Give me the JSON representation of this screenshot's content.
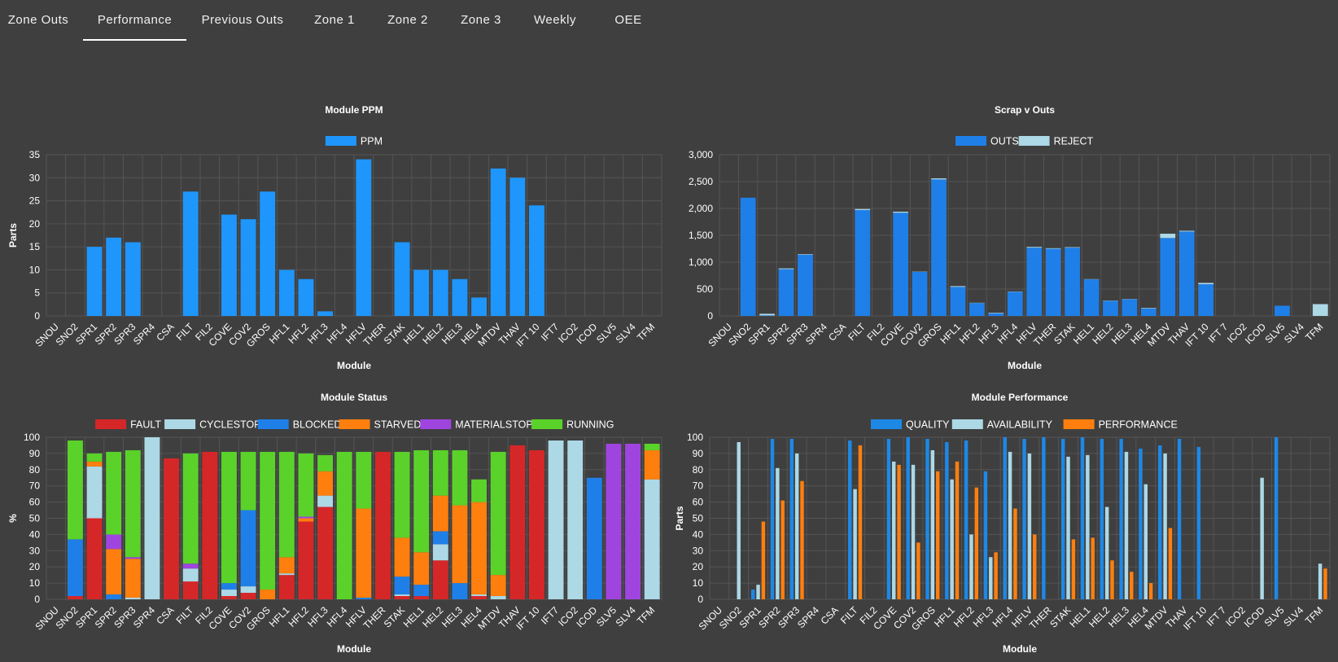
{
  "tabs": [
    {
      "label": "Zone Outs",
      "active": false
    },
    {
      "label": "Performance",
      "active": true
    },
    {
      "label": "Previous Outs",
      "active": false
    },
    {
      "label": "Zone 1",
      "active": false
    },
    {
      "label": "Zone 2",
      "active": false
    },
    {
      "label": "Zone 3",
      "active": false
    },
    {
      "label": "Weekly",
      "active": false
    },
    {
      "label": "OEE",
      "active": false
    }
  ],
  "colors": {
    "background": "#3f3f3f",
    "grid": "#555555",
    "axis_text": "#ffffff",
    "ppm": "#1e96fc",
    "outs": "#1f7fe8",
    "reject": "#add8e6",
    "fault": "#d62728",
    "cyclestop": "#add8e6",
    "blocked": "#1f7fe8",
    "starved": "#ff7f0e",
    "materialstop": "#a044e0",
    "running": "#5ad22a",
    "quality": "#1e88e5",
    "availability": "#add8e6",
    "performance": "#ff7f0e"
  },
  "chart_data": [
    {
      "id": "ppm",
      "type": "bar",
      "title": "Module PPM",
      "xlabel": "Module",
      "ylabel": "Parts",
      "ylim": [
        0,
        35
      ],
      "yticks": [
        0,
        5,
        10,
        15,
        20,
        25,
        30,
        35
      ],
      "categories": [
        "SNOU",
        "SNO2",
        "SPR1",
        "SPR2",
        "SPR3",
        "SPR4",
        "CSA",
        "FILT",
        "FIL2",
        "COVE",
        "COV2",
        "GROS",
        "HFL1",
        "HFL2",
        "HFL3",
        "HFL4",
        "HFLV",
        "THER",
        "STAK",
        "HEL1",
        "HEL2",
        "HEL3",
        "HEL4",
        "MTDV",
        "THAV",
        "IFT 10",
        "IFT7",
        "ICO2",
        "ICOD",
        "SLV5",
        "SLV4",
        "TFM"
      ],
      "stacked": false,
      "series": [
        {
          "name": "PPM",
          "color": "#1e96fc",
          "values": [
            0,
            0,
            15,
            17,
            16,
            0,
            0,
            27,
            0,
            22,
            21,
            27,
            10,
            8,
            1,
            0,
            34,
            0,
            16,
            10,
            10,
            8,
            4,
            32,
            30,
            24,
            0,
            0,
            0,
            0,
            0,
            0
          ]
        }
      ]
    },
    {
      "id": "scrap",
      "type": "bar",
      "title": "Scrap v Outs",
      "xlabel": "Module",
      "ylabel": "",
      "ylim": [
        0,
        3000
      ],
      "yticks": [
        0,
        500,
        1000,
        1500,
        2000,
        2500,
        3000
      ],
      "categories": [
        "SNOU",
        "SNO2",
        "SPR1",
        "SPR2",
        "SPR3",
        "SPR4",
        "CSA",
        "FILT",
        "FIL2",
        "COVE",
        "COV2",
        "GROS",
        "HFL1",
        "HFL2",
        "HFL3",
        "HFL4",
        "HFLV",
        "THER",
        "STAK",
        "HEL1",
        "HEL2",
        "HEL3",
        "HEL4",
        "MTDV",
        "THAV",
        "IFT 10",
        "IFT 7",
        "ICO2",
        "ICOD",
        "SLV5",
        "SLV4",
        "TFM"
      ],
      "stacked": true,
      "series": [
        {
          "name": "OUTS",
          "color": "#1f7fe8",
          "values": [
            0,
            2200,
            10,
            870,
            1140,
            0,
            0,
            1970,
            0,
            1920,
            820,
            2540,
            540,
            240,
            50,
            450,
            1270,
            1250,
            1270,
            680,
            280,
            310,
            140,
            1450,
            1570,
            590,
            0,
            0,
            0,
            190,
            0,
            0
          ]
        },
        {
          "name": "REJECT",
          "color": "#add8e6",
          "values": [
            0,
            0,
            30,
            15,
            10,
            0,
            0,
            20,
            0,
            20,
            5,
            20,
            15,
            5,
            10,
            5,
            15,
            10,
            10,
            5,
            5,
            5,
            10,
            80,
            15,
            25,
            0,
            0,
            0,
            0,
            0,
            220
          ]
        }
      ]
    },
    {
      "id": "status",
      "type": "bar",
      "title": "Module Status",
      "xlabel": "Module",
      "ylabel": "%",
      "ylim": [
        0,
        100
      ],
      "yticks": [
        0,
        10,
        20,
        30,
        40,
        50,
        60,
        70,
        80,
        90,
        100
      ],
      "categories": [
        "SNOU",
        "SNO2",
        "SPR1",
        "SPR2",
        "SPR3",
        "SPR4",
        "CSA",
        "FILT",
        "FIL2",
        "COVE",
        "COV2",
        "GROS",
        "HFL1",
        "HFL2",
        "HFL3",
        "HFL4",
        "HFLV",
        "THER",
        "STAK",
        "HEL1",
        "HEL2",
        "HEL3",
        "HEL4",
        "MTDV",
        "THAV",
        "IFT 10",
        "IFT7",
        "ICO2",
        "ICOD",
        "SLV5",
        "SLV4",
        "TFM"
      ],
      "stacked": true,
      "series": [
        {
          "name": "FAULT",
          "color": "#d62728",
          "values": [
            0,
            2,
            50,
            0,
            0,
            0,
            87,
            11,
            91,
            2,
            4,
            0,
            15,
            48,
            57,
            0,
            0,
            91,
            2,
            2,
            24,
            0,
            2,
            0,
            95,
            92,
            0,
            0,
            0,
            0,
            0,
            0
          ]
        },
        {
          "name": "CYCLESTOP",
          "color": "#add8e6",
          "values": [
            0,
            0,
            32,
            0,
            1,
            100,
            0,
            8,
            0,
            4,
            4,
            0,
            1,
            0,
            7,
            0,
            0,
            0,
            1,
            0,
            10,
            0,
            1,
            2,
            0,
            0,
            98,
            98,
            0,
            0,
            0,
            74
          ]
        },
        {
          "name": "BLOCKED",
          "color": "#1f7fe8",
          "values": [
            0,
            35,
            0,
            3,
            0,
            0,
            0,
            0,
            0,
            4,
            47,
            0,
            0,
            0,
            0,
            0,
            1,
            0,
            11,
            7,
            8,
            10,
            0,
            0,
            0,
            0,
            0,
            0,
            75,
            0,
            0,
            0
          ]
        },
        {
          "name": "STARVED",
          "color": "#ff7f0e",
          "values": [
            0,
            0,
            3,
            28,
            24,
            0,
            0,
            0,
            0,
            0,
            0,
            6,
            10,
            2,
            15,
            0,
            55,
            0,
            24,
            20,
            22,
            48,
            57,
            13,
            0,
            0,
            0,
            0,
            0,
            0,
            0,
            18
          ]
        },
        {
          "name": "MATERIALSTOP",
          "color": "#a044e0",
          "values": [
            0,
            0,
            0,
            9,
            1,
            0,
            0,
            3,
            0,
            0,
            0,
            0,
            0,
            1,
            0,
            0,
            0,
            0,
            0,
            0,
            0,
            0,
            0,
            0,
            0,
            0,
            0,
            0,
            0,
            96,
            96,
            0
          ]
        },
        {
          "name": "RUNNING",
          "color": "#5ad22a",
          "values": [
            0,
            61,
            5,
            51,
            66,
            0,
            0,
            68,
            0,
            81,
            36,
            85,
            65,
            39,
            10,
            91,
            35,
            0,
            53,
            63,
            28,
            34,
            14,
            76,
            0,
            0,
            0,
            0,
            0,
            0,
            0,
            4
          ]
        }
      ]
    },
    {
      "id": "performance",
      "type": "bar",
      "title": "Module Performance",
      "xlabel": "Module",
      "ylabel": "Parts",
      "ylim": [
        0,
        100
      ],
      "yticks": [
        0,
        10,
        20,
        30,
        40,
        50,
        60,
        70,
        80,
        90,
        100
      ],
      "categories": [
        "SNOU",
        "SNO2",
        "SPR1",
        "SPR2",
        "SPR3",
        "SPR4",
        "CSA",
        "FILT",
        "FIL2",
        "COVE",
        "COV2",
        "GROS",
        "HFL1",
        "HFL2",
        "HFL3",
        "HFL4",
        "HFLV",
        "THER",
        "STAK",
        "HEL1",
        "HEL2",
        "HEL3",
        "HEL4",
        "MTDV",
        "THAV",
        "IFT 10",
        "IFT 7",
        "ICO2",
        "ICOD",
        "SLV5",
        "SLV4",
        "TFM"
      ],
      "stacked": false,
      "series": [
        {
          "name": "QUALITY",
          "color": "#1e88e5",
          "values": [
            0,
            0,
            6,
            99,
            99,
            0,
            0,
            98,
            0,
            99,
            100,
            99,
            97,
            98,
            79,
            100,
            99,
            100,
            99,
            100,
            99,
            99,
            93,
            95,
            99,
            94,
            0,
            0,
            0,
            100,
            0,
            0
          ]
        },
        {
          "name": "AVAILABILITY",
          "color": "#add8e6",
          "values": [
            0,
            97,
            9,
            81,
            90,
            0,
            0,
            68,
            0,
            85,
            83,
            92,
            74,
            40,
            26,
            91,
            90,
            0,
            88,
            89,
            57,
            91,
            71,
            90,
            0,
            0,
            0,
            0,
            75,
            0,
            0,
            22
          ]
        },
        {
          "name": "PERFORMANCE",
          "color": "#ff7f0e",
          "values": [
            0,
            0,
            48,
            61,
            73,
            0,
            0,
            95,
            0,
            83,
            35,
            79,
            85,
            69,
            29,
            56,
            40,
            0,
            37,
            38,
            24,
            17,
            10,
            44,
            0,
            0,
            0,
            0,
            0,
            0,
            0,
            19
          ]
        }
      ]
    }
  ]
}
